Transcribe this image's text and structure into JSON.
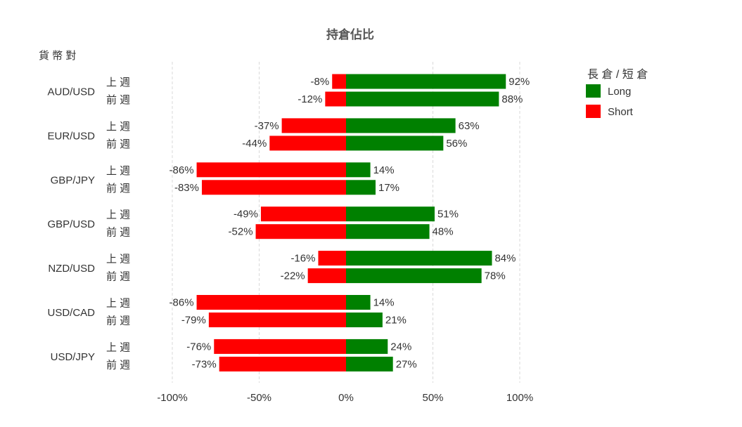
{
  "chart_data": {
    "type": "bar",
    "orientation": "horizontal",
    "stacked": "diverging",
    "title": "持倉佔比",
    "y_title": "貨 幣 對",
    "categories": [
      "AUD/USD",
      "EUR/USD",
      "GBP/JPY",
      "GBP/USD",
      "NZD/USD",
      "USD/CAD",
      "USD/JPY"
    ],
    "periods": [
      "上 週",
      "前 週"
    ],
    "series": [
      {
        "name": "Long",
        "color": "#008000",
        "values": {
          "上 週": [
            92,
            63,
            14,
            51,
            84,
            14,
            24
          ],
          "前 週": [
            88,
            56,
            17,
            48,
            78,
            21,
            27
          ]
        }
      },
      {
        "name": "Short",
        "color": "#ff0000",
        "values": {
          "上 週": [
            -8,
            -37,
            -86,
            -49,
            -16,
            -86,
            -76
          ],
          "前 週": [
            -12,
            -44,
            -83,
            -52,
            -22,
            -79,
            -73
          ]
        }
      }
    ],
    "xlim": [
      -100,
      100
    ],
    "x_ticks": [
      -100,
      -50,
      0,
      50,
      100
    ],
    "x_tick_labels": [
      "-100%",
      "-50%",
      "0%",
      "50%",
      "100%"
    ],
    "value_suffix": "%",
    "grid": "vertical dashed",
    "legend": {
      "title": "長 倉 / 短 倉",
      "placement": "right",
      "entries": [
        "Long",
        "Short"
      ]
    }
  }
}
